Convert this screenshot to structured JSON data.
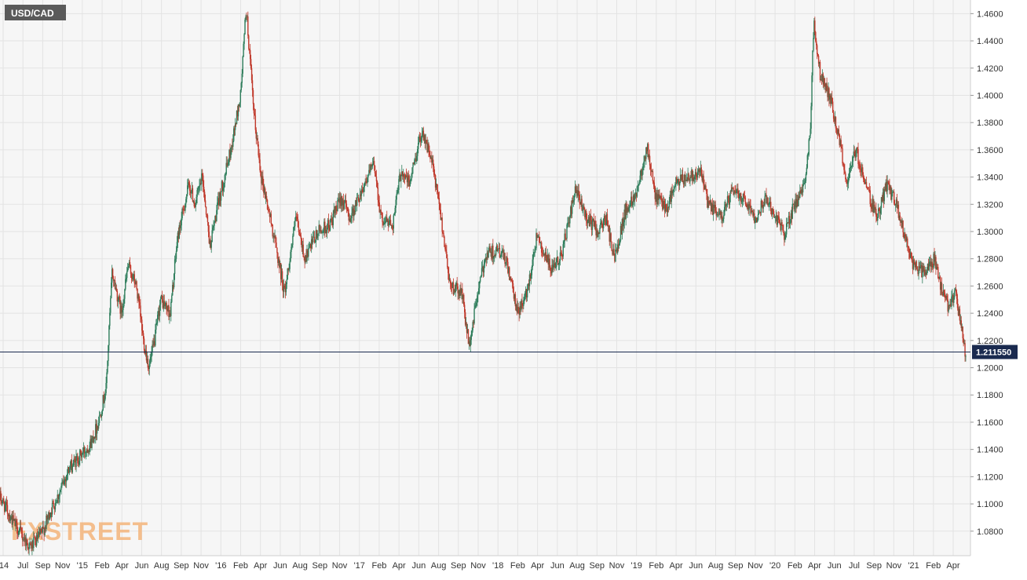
{
  "chart_data": {
    "type": "candlestick",
    "symbol": "USD/CAD",
    "last_price": 1.21155,
    "last_price_label": "1.211550",
    "ylim": [
      1.062,
      1.47
    ],
    "y_ticks": [
      1.08,
      1.1,
      1.12,
      1.14,
      1.16,
      1.18,
      1.2,
      1.22,
      1.24,
      1.26,
      1.28,
      1.3,
      1.32,
      1.34,
      1.36,
      1.38,
      1.4,
      1.42,
      1.44,
      1.46
    ],
    "y_tick_labels": [
      "1.0800",
      "1.1000",
      "1.1200",
      "1.1400",
      "1.1600",
      "1.1800",
      "1.2000",
      "1.2200",
      "1.2400",
      "1.2600",
      "1.2800",
      "1.3000",
      "1.3200",
      "1.3400",
      "1.3600",
      "1.3800",
      "1.4000",
      "1.4200",
      "1.4400",
      "1.4600"
    ],
    "x_labels": [
      "'14",
      "Jul",
      "Sep",
      "Nov",
      "'15",
      "Feb",
      "Apr",
      "Jun",
      "Aug",
      "Sep",
      "Nov",
      "'16",
      "Feb",
      "Apr",
      "Jun",
      "Aug",
      "Sep",
      "Nov",
      "'17",
      "Feb",
      "Apr",
      "Jun",
      "Aug",
      "Sep",
      "Nov",
      "'18",
      "Feb",
      "Apr",
      "Jun",
      "Aug",
      "Sep",
      "Nov",
      "'19",
      "Feb",
      "Apr",
      "Jun",
      "Aug",
      "Sep",
      "Nov",
      "'20",
      "Feb",
      "Apr",
      "Jun",
      "Jul",
      "Sep",
      "Nov",
      "'21",
      "Feb",
      "Apr"
    ],
    "x_start": "2014-04-01",
    "x_end": "2021-04-30",
    "price_path": [
      [
        "2014-04-01",
        1.105
      ],
      [
        "2014-05-10",
        1.085
      ],
      [
        "2014-06-20",
        1.068
      ],
      [
        "2014-07-05",
        1.072
      ],
      [
        "2014-07-25",
        1.08
      ],
      [
        "2014-08-15",
        1.095
      ],
      [
        "2014-09-10",
        1.11
      ],
      [
        "2014-10-01",
        1.125
      ],
      [
        "2014-11-01",
        1.135
      ],
      [
        "2014-12-01",
        1.145
      ],
      [
        "2014-12-20",
        1.16
      ],
      [
        "2015-01-10",
        1.185
      ],
      [
        "2015-01-26",
        1.27
      ],
      [
        "2015-02-20",
        1.24
      ],
      [
        "2015-03-10",
        1.275
      ],
      [
        "2015-04-01",
        1.26
      ],
      [
        "2015-04-20",
        1.22
      ],
      [
        "2015-05-05",
        1.2
      ],
      [
        "2015-05-20",
        1.22
      ],
      [
        "2015-06-05",
        1.25
      ],
      [
        "2015-07-01",
        1.24
      ],
      [
        "2015-07-20",
        1.295
      ],
      [
        "2015-08-20",
        1.335
      ],
      [
        "2015-09-05",
        1.32
      ],
      [
        "2015-09-25",
        1.34
      ],
      [
        "2015-10-15",
        1.29
      ],
      [
        "2015-11-10",
        1.325
      ],
      [
        "2015-12-10",
        1.36
      ],
      [
        "2016-01-05",
        1.4
      ],
      [
        "2016-01-20",
        1.465
      ],
      [
        "2016-02-10",
        1.385
      ],
      [
        "2016-03-01",
        1.34
      ],
      [
        "2016-04-01",
        1.3
      ],
      [
        "2016-05-02",
        1.255
      ],
      [
        "2016-06-01",
        1.31
      ],
      [
        "2016-06-25",
        1.28
      ],
      [
        "2016-08-01",
        1.3
      ],
      [
        "2016-09-01",
        1.305
      ],
      [
        "2016-10-01",
        1.325
      ],
      [
        "2016-10-25",
        1.31
      ],
      [
        "2016-12-01",
        1.335
      ],
      [
        "2016-12-28",
        1.35
      ],
      [
        "2017-01-15",
        1.31
      ],
      [
        "2017-02-15",
        1.305
      ],
      [
        "2017-03-10",
        1.345
      ],
      [
        "2017-04-01",
        1.335
      ],
      [
        "2017-05-05",
        1.375
      ],
      [
        "2017-06-01",
        1.35
      ],
      [
        "2017-06-25",
        1.31
      ],
      [
        "2017-07-20",
        1.26
      ],
      [
        "2017-08-20",
        1.255
      ],
      [
        "2017-09-08",
        1.215
      ],
      [
        "2017-10-01",
        1.255
      ],
      [
        "2017-10-25",
        1.285
      ],
      [
        "2017-12-01",
        1.285
      ],
      [
        "2017-12-20",
        1.275
      ],
      [
        "2018-01-15",
        1.24
      ],
      [
        "2018-02-10",
        1.255
      ],
      [
        "2018-03-10",
        1.3
      ],
      [
        "2018-03-25",
        1.285
      ],
      [
        "2018-04-20",
        1.27
      ],
      [
        "2018-05-15",
        1.285
      ],
      [
        "2018-06-20",
        1.33
      ],
      [
        "2018-07-20",
        1.31
      ],
      [
        "2018-08-20",
        1.3
      ],
      [
        "2018-09-10",
        1.31
      ],
      [
        "2018-10-01",
        1.28
      ],
      [
        "2018-11-01",
        1.315
      ],
      [
        "2018-12-01",
        1.33
      ],
      [
        "2018-12-28",
        1.363
      ],
      [
        "2019-01-20",
        1.325
      ],
      [
        "2019-02-20",
        1.318
      ],
      [
        "2019-03-15",
        1.335
      ],
      [
        "2019-04-15",
        1.34
      ],
      [
        "2019-05-20",
        1.345
      ],
      [
        "2019-06-10",
        1.32
      ],
      [
        "2019-07-15",
        1.31
      ],
      [
        "2019-08-15",
        1.33
      ],
      [
        "2019-09-15",
        1.325
      ],
      [
        "2019-10-15",
        1.31
      ],
      [
        "2019-11-10",
        1.325
      ],
      [
        "2019-12-10",
        1.31
      ],
      [
        "2020-01-01",
        1.298
      ],
      [
        "2020-01-25",
        1.318
      ],
      [
        "2020-02-20",
        1.33
      ],
      [
        "2020-03-10",
        1.375
      ],
      [
        "2020-03-19",
        1.455
      ],
      [
        "2020-04-05",
        1.415
      ],
      [
        "2020-05-01",
        1.4
      ],
      [
        "2020-06-01",
        1.36
      ],
      [
        "2020-06-15",
        1.335
      ],
      [
        "2020-07-10",
        1.36
      ],
      [
        "2020-08-10",
        1.33
      ],
      [
        "2020-09-05",
        1.31
      ],
      [
        "2020-10-01",
        1.335
      ],
      [
        "2020-10-25",
        1.32
      ],
      [
        "2020-11-10",
        1.305
      ],
      [
        "2020-12-10",
        1.275
      ],
      [
        "2021-01-10",
        1.27
      ],
      [
        "2021-02-05",
        1.28
      ],
      [
        "2021-02-25",
        1.255
      ],
      [
        "2021-03-15",
        1.245
      ],
      [
        "2021-04-01",
        1.255
      ],
      [
        "2021-04-15",
        1.235
      ],
      [
        "2021-04-28",
        1.2115
      ]
    ],
    "colors": {
      "up": "#2e7d5b",
      "down": "#c0392b",
      "grid": "#e3e3e3",
      "background": "#f6f6f6",
      "price_line": "#1a2a4f",
      "price_label_bg": "#1a2a4f",
      "symbol_badge_bg": "#5a5a5a",
      "watermark": "#f3b47a"
    },
    "watermark": "FXSTREET"
  }
}
